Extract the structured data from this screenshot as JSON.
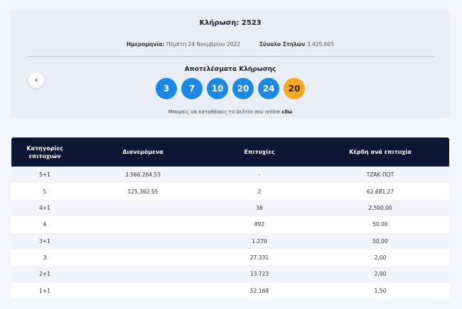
{
  "draw": {
    "title": "Κλήρωση: 2523",
    "date_label": "Ημερομηνία:",
    "date_value": "Πέμπτη 24 Νοεμβρίου 2022",
    "columns_label": "Σύνολο Στηλών",
    "columns_value": "3.425.605",
    "results_title": "Αποτελέσματα Κλήρωσης",
    "numbers": [
      "3",
      "7",
      "10",
      "20",
      "24"
    ],
    "joker": "20",
    "online_text": "Μπορείς να καταθέσεις το δελτίο σου online",
    "online_link": "εδώ",
    "prev_icon": "chevron-left-icon"
  },
  "colors": {
    "ball": "#1b87e6",
    "joker": "#f7a81c",
    "header": "#0e1636"
  },
  "table": {
    "headers": {
      "category": "Κατηγορίες επιτυχιών",
      "distributed": "Διανεμόμενα",
      "winners": "Επιτυχίες",
      "prize": "Κέρδη ανά επιτυχία"
    },
    "rows": [
      {
        "category": "5+1",
        "distributed": "3.566.264,53",
        "winners": "-",
        "prize": "ΤΖΑΚ-ΠΟΤ"
      },
      {
        "category": "5",
        "distributed": "125.362,55",
        "winners": "2",
        "prize": "62.681,27"
      },
      {
        "category": "4+1",
        "distributed": "",
        "winners": "36",
        "prize": "2.500,00"
      },
      {
        "category": "4",
        "distributed": "",
        "winners": "892",
        "prize": "50,00"
      },
      {
        "category": "3+1",
        "distributed": "",
        "winners": "1.270",
        "prize": "50,00"
      },
      {
        "category": "3",
        "distributed": "",
        "winners": "27.331",
        "prize": "2,00"
      },
      {
        "category": "2+1",
        "distributed": "",
        "winners": "13.723",
        "prize": "2,00"
      },
      {
        "category": "1+1",
        "distributed": "",
        "winners": "52.168",
        "prize": "1,50"
      }
    ]
  }
}
